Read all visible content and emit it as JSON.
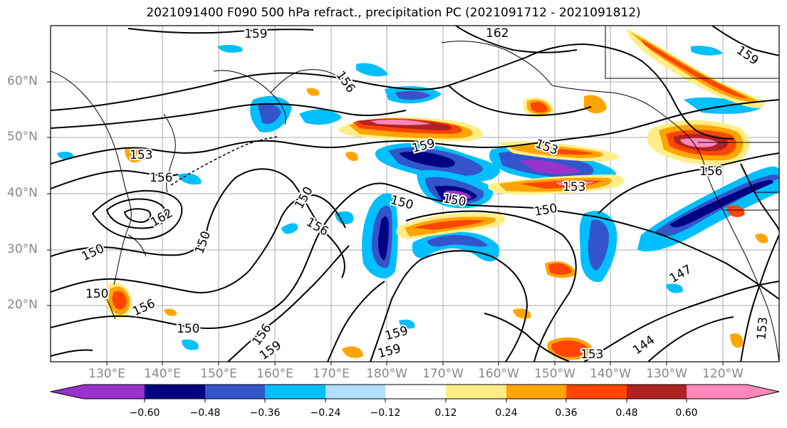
{
  "title": "2021091400 F090 500 hPa refract., precipitation PC (2021091712 - 2021091812)",
  "map": {
    "lat_labels": [
      "60°N",
      "50°N",
      "40°N",
      "30°N",
      "20°N"
    ],
    "lon_labels": [
      "130°E",
      "140°E",
      "150°E",
      "160°E",
      "170°E",
      "180°W",
      "170°W",
      "160°W",
      "150°W",
      "140°W",
      "130°W",
      "120°W"
    ],
    "contour_labels": [
      "159",
      "162",
      "159",
      "156",
      "153",
      "156",
      "159",
      "153",
      "156",
      "150",
      "150",
      "150",
      "153",
      "150",
      "150",
      "150",
      "156",
      "150",
      "147",
      "144",
      "153",
      "156",
      "159",
      "159",
      "159",
      "153",
      "156",
      "162",
      "150"
    ],
    "colors": {
      "purple": "#9933cc",
      "navy": "#000080",
      "royal_blue": "#3355cc",
      "deep_sky": "#00bfff",
      "light_blue": "#b0e0ff",
      "yellow": "#ffee88",
      "orange": "#ffa500",
      "red_orange": "#ff4500",
      "dark_red": "#b22222",
      "pink": "#ff88bb"
    }
  },
  "colorbar": {
    "ticks": [
      "−0.60",
      "−0.48",
      "−0.36",
      "−0.24",
      "−0.12",
      "0.12",
      "0.24",
      "0.36",
      "0.48",
      "0.60"
    ],
    "colors": [
      "#9933cc",
      "#000080",
      "#3355cc",
      "#00bfff",
      "#b0e0ff",
      "#ffffff",
      "#ffee88",
      "#ffa500",
      "#ff4500",
      "#b22222",
      "#ff88bb"
    ]
  }
}
